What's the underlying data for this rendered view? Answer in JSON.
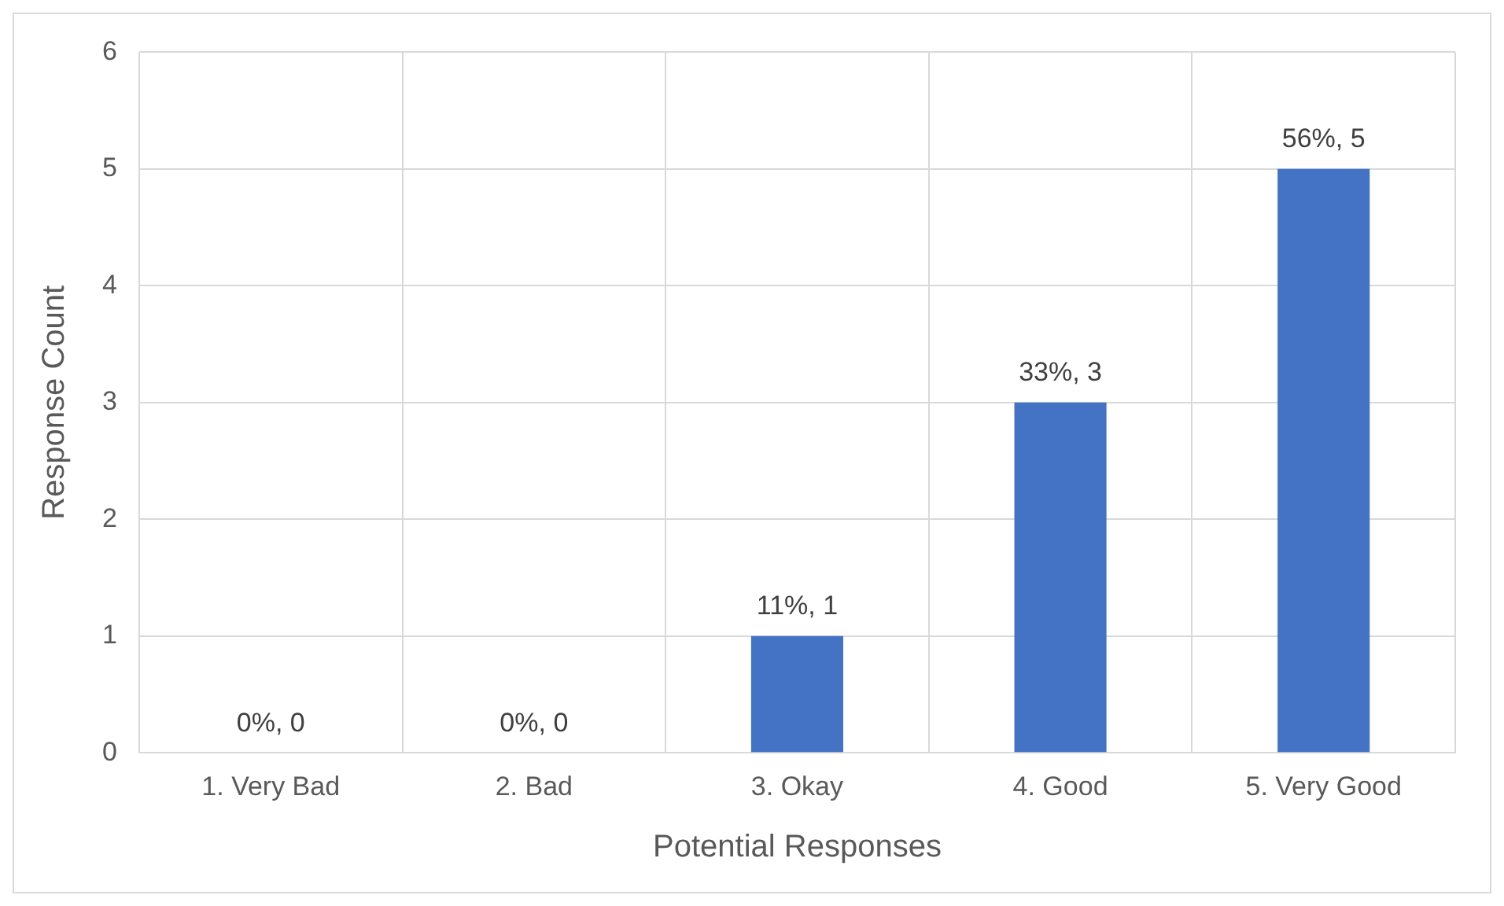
{
  "chart_data": {
    "type": "bar",
    "xlabel": "Potential Responses",
    "ylabel": "Response Count",
    "categories": [
      "1. Very Bad",
      "2. Bad",
      "3. Okay",
      "4. Good",
      "5. Very Good"
    ],
    "values": [
      0,
      0,
      1,
      3,
      5
    ],
    "color": "#4472c4",
    "value_labels": [
      "0%, 0",
      "0%, 0",
      "11%, 1",
      "33%, 3",
      "56%, 5"
    ],
    "ylim": [
      0,
      6
    ],
    "yticks": [
      0,
      1,
      2,
      3,
      4,
      5,
      6
    ],
    "grid": true,
    "legend": false
  }
}
